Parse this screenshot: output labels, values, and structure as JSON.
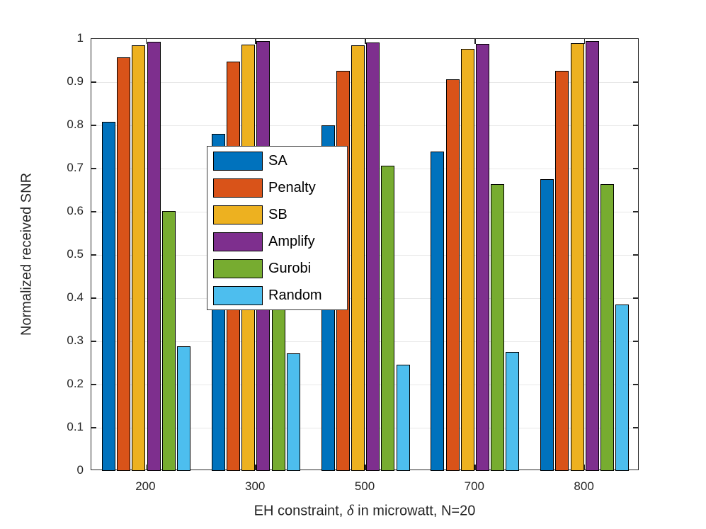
{
  "chart_data": {
    "type": "bar",
    "title": "",
    "xlabel": "EH constraint, δ in microwatt, N=20",
    "xlabel_parts": {
      "prefix": "EH constraint, ",
      "delta": "δ",
      "suffix": " in microwatt, N=20"
    },
    "ylabel": "Normalized received SNR",
    "categories": [
      "200",
      "300",
      "500",
      "700",
      "800"
    ],
    "series": [
      {
        "name": "SA",
        "color": "#0072BD",
        "values": [
          0.808,
          0.781,
          0.8,
          0.74,
          0.676
        ]
      },
      {
        "name": "Penalty",
        "color": "#D95319",
        "values": [
          0.957,
          0.947,
          0.926,
          0.907,
          0.927
        ]
      },
      {
        "name": "SB",
        "color": "#EDB120",
        "values": [
          0.986,
          0.987,
          0.985,
          0.977,
          0.99
        ]
      },
      {
        "name": "Amplify",
        "color": "#7E2F8E",
        "values": [
          0.994,
          0.995,
          0.992,
          0.988,
          0.995
        ]
      },
      {
        "name": "Gurobi",
        "color": "#77AC30",
        "values": [
          0.602,
          0.583,
          0.707,
          0.664,
          0.664
        ]
      },
      {
        "name": "Random",
        "color": "#4DBEEE",
        "values": [
          0.289,
          0.272,
          0.246,
          0.276,
          0.385
        ]
      }
    ],
    "ylim": [
      0,
      1
    ],
    "yticks": [
      0,
      0.1,
      0.2,
      0.3,
      0.4,
      0.5,
      0.6,
      0.7,
      0.8,
      0.9,
      1
    ],
    "ytick_labels": [
      "0",
      "0.1",
      "0.2",
      "0.3",
      "0.4",
      "0.5",
      "0.6",
      "0.7",
      "0.8",
      "0.9",
      "1"
    ],
    "grid": "horizontal",
    "legend_position": "center"
  }
}
